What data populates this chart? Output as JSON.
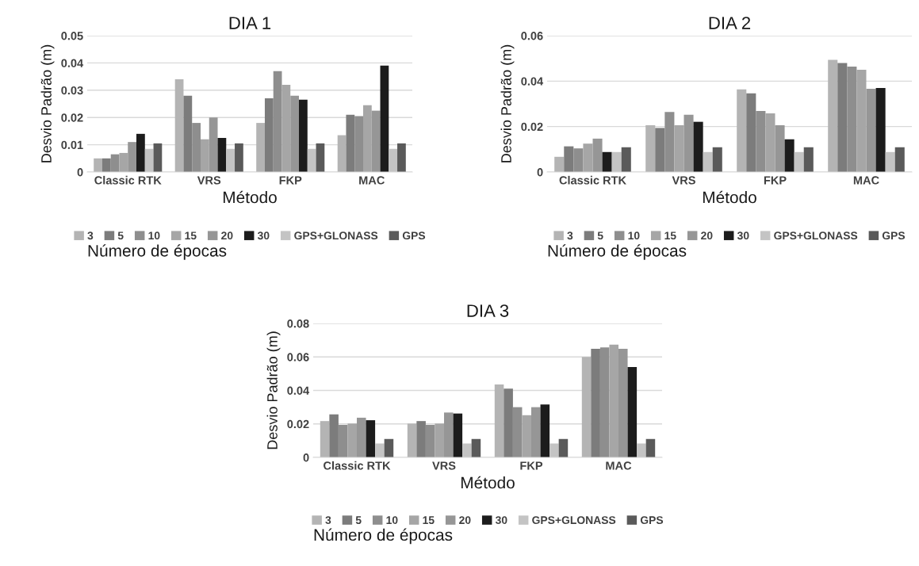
{
  "chart_data": [
    {
      "type": "bar",
      "title": "DIA 1",
      "xlabel": "Método",
      "ylabel": "Desvio Padrão (m)",
      "legend_title": "Número de épocas",
      "legend": "bottom",
      "grid": "y",
      "categories": [
        "Classic RTK",
        "VRS",
        "FKP",
        "MAC"
      ],
      "ylim": [
        0,
        0.05
      ],
      "yticks": [
        0,
        0.01,
        0.02,
        0.03,
        0.04,
        0.05
      ],
      "series": [
        {
          "name": "3",
          "color": "#b4b4b4",
          "values": [
            0.005,
            0.034,
            0.018,
            0.0135
          ]
        },
        {
          "name": "5",
          "color": "#7c7c7c",
          "values": [
            0.005,
            0.028,
            0.027,
            0.021
          ]
        },
        {
          "name": "10",
          "color": "#8e8e8e",
          "values": [
            0.0065,
            0.018,
            0.037,
            0.0205
          ]
        },
        {
          "name": "15",
          "color": "#a6a6a6",
          "values": [
            0.007,
            0.012,
            0.032,
            0.0245
          ]
        },
        {
          "name": "20",
          "color": "#969696",
          "values": [
            0.011,
            0.02,
            0.028,
            0.0225
          ]
        },
        {
          "name": "30",
          "color": "#1c1c1c",
          "values": [
            0.014,
            0.0125,
            0.0265,
            0.039
          ]
        },
        {
          "name": "GPS+GLONASS",
          "color": "#c4c4c4",
          "values": [
            0.0085,
            0.0085,
            0.0085,
            0.0085
          ]
        },
        {
          "name": "GPS",
          "color": "#5a5a5a",
          "values": [
            0.0105,
            0.0105,
            0.0105,
            0.0105
          ]
        }
      ]
    },
    {
      "type": "bar",
      "title": "DIA 2",
      "xlabel": "Método",
      "ylabel": "Desvio Padrão (m)",
      "legend_title": "Número de épocas",
      "legend": "bottom",
      "grid": "y",
      "categories": [
        "Classic RTK",
        "VRS",
        "FKP",
        "MAC"
      ],
      "ylim": [
        0,
        0.06
      ],
      "yticks": [
        0,
        0.02,
        0.04,
        0.06
      ],
      "series": [
        {
          "name": "3",
          "color": "#b4b4b4",
          "values": [
            0.0067,
            0.0206,
            0.0364,
            0.0494
          ]
        },
        {
          "name": "5",
          "color": "#7c7c7c",
          "values": [
            0.0113,
            0.0194,
            0.0346,
            0.048
          ]
        },
        {
          "name": "10",
          "color": "#8e8e8e",
          "values": [
            0.0104,
            0.0264,
            0.0269,
            0.0464
          ]
        },
        {
          "name": "15",
          "color": "#a6a6a6",
          "values": [
            0.0125,
            0.0206,
            0.0258,
            0.045
          ]
        },
        {
          "name": "20",
          "color": "#969696",
          "values": [
            0.0147,
            0.0252,
            0.0206,
            0.0366
          ]
        },
        {
          "name": "30",
          "color": "#1c1c1c",
          "values": [
            0.0088,
            0.0221,
            0.0144,
            0.037
          ]
        },
        {
          "name": "GPS+GLONASS",
          "color": "#c4c4c4",
          "values": [
            0.0088,
            0.0088,
            0.0088,
            0.0088
          ]
        },
        {
          "name": "GPS",
          "color": "#5a5a5a",
          "values": [
            0.0109,
            0.0109,
            0.0109,
            0.0109
          ]
        }
      ]
    },
    {
      "type": "bar",
      "title": "DIA 3",
      "xlabel": "Método",
      "ylabel": "Desvio Padrão (m)",
      "legend_title": "Número de épocas",
      "legend": "bottom",
      "grid": "y",
      "categories": [
        "Classic RTK",
        "VRS",
        "FKP",
        "MAC"
      ],
      "ylim": [
        0,
        0.08
      ],
      "yticks": [
        0,
        0.02,
        0.04,
        0.06,
        0.08
      ],
      "series": [
        {
          "name": "3",
          "color": "#b4b4b4",
          "values": [
            0.0217,
            0.0202,
            0.0436,
            0.06
          ]
        },
        {
          "name": "5",
          "color": "#7c7c7c",
          "values": [
            0.0257,
            0.0217,
            0.0411,
            0.0649
          ]
        },
        {
          "name": "10",
          "color": "#8e8e8e",
          "values": [
            0.0194,
            0.0194,
            0.03,
            0.0657
          ]
        },
        {
          "name": "15",
          "color": "#a6a6a6",
          "values": [
            0.0202,
            0.0202,
            0.0252,
            0.0673
          ]
        },
        {
          "name": "20",
          "color": "#969696",
          "values": [
            0.0237,
            0.0268,
            0.03,
            0.0649
          ]
        },
        {
          "name": "30",
          "color": "#1c1c1c",
          "values": [
            0.0222,
            0.0262,
            0.0316,
            0.054
          ]
        },
        {
          "name": "GPS+GLONASS",
          "color": "#c4c4c4",
          "values": [
            0.0083,
            0.0083,
            0.0083,
            0.0083
          ]
        },
        {
          "name": "GPS",
          "color": "#5a5a5a",
          "values": [
            0.011,
            0.011,
            0.011,
            0.011
          ]
        }
      ]
    }
  ]
}
